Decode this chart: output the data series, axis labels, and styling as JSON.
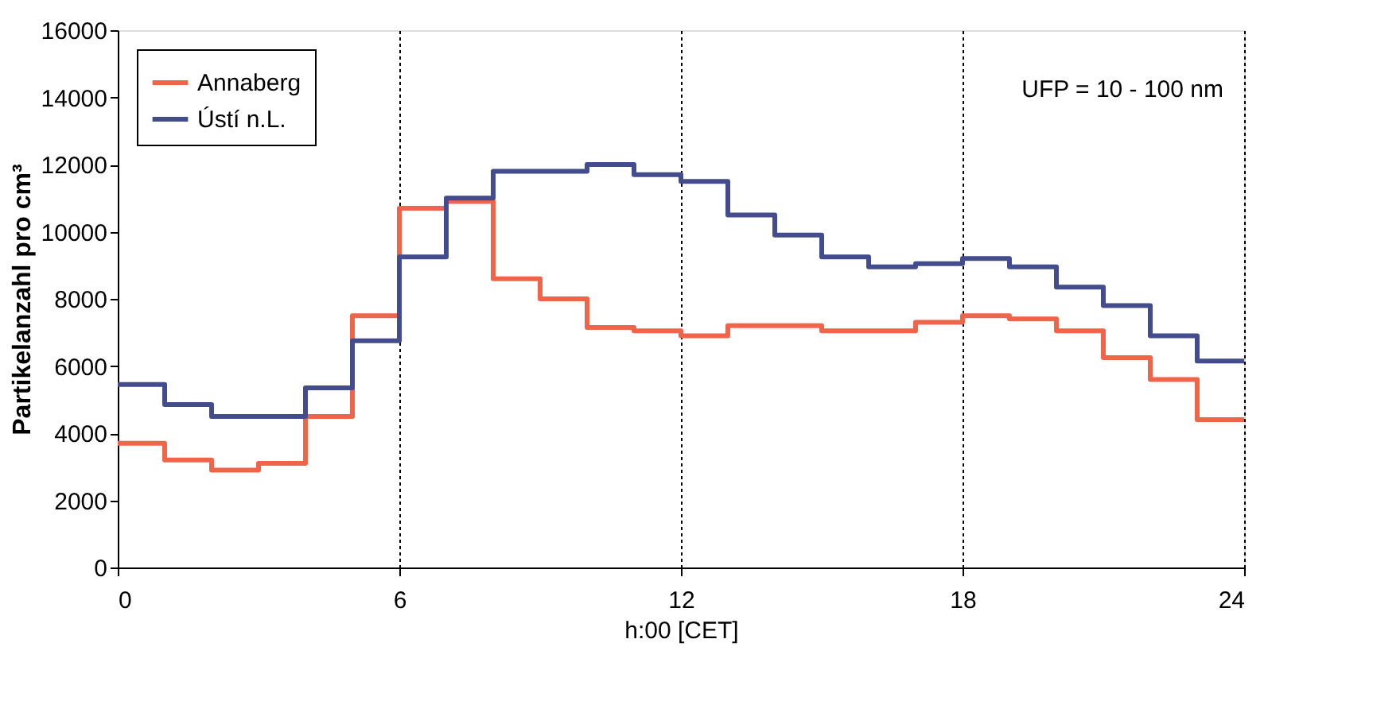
{
  "chart_data": {
    "type": "step",
    "xlabel": "h:00 [CET]",
    "ylabel": "Partikelanzahl pro cm³",
    "x": [
      0,
      1,
      2,
      3,
      4,
      5,
      6,
      7,
      8,
      9,
      10,
      11,
      12,
      13,
      14,
      15,
      16,
      17,
      18,
      19,
      20,
      21,
      22,
      23,
      24
    ],
    "series": [
      {
        "name": "Annaberg",
        "color": "#f0654a",
        "values": [
          3700,
          3200,
          2900,
          3100,
          4500,
          7500,
          10700,
          10900,
          8600,
          8000,
          7150,
          7050,
          6900,
          7200,
          7200,
          7050,
          7050,
          7300,
          7500,
          7400,
          7050,
          6250,
          5600,
          4400,
          4400
        ]
      },
      {
        "name": "Ústí n.L.",
        "color": "#434c8c",
        "values": [
          5450,
          4850,
          4500,
          4500,
          5350,
          6750,
          9250,
          11000,
          11800,
          11800,
          12000,
          11700,
          11500,
          10500,
          9900,
          9250,
          8950,
          9050,
          9200,
          8950,
          8350,
          7800,
          6900,
          6150,
          6150
        ]
      }
    ],
    "xlim": [
      0,
      24
    ],
    "xticks": [
      0,
      6,
      12,
      18,
      24
    ],
    "ylim": [
      0,
      16000
    ],
    "yticks": [
      0,
      2000,
      4000,
      6000,
      8000,
      10000,
      12000,
      14000,
      16000
    ],
    "grid": "x",
    "legend": "top left",
    "line_style": "solid",
    "annotations": [
      "UFP = 10 - 100 nm"
    ]
  }
}
